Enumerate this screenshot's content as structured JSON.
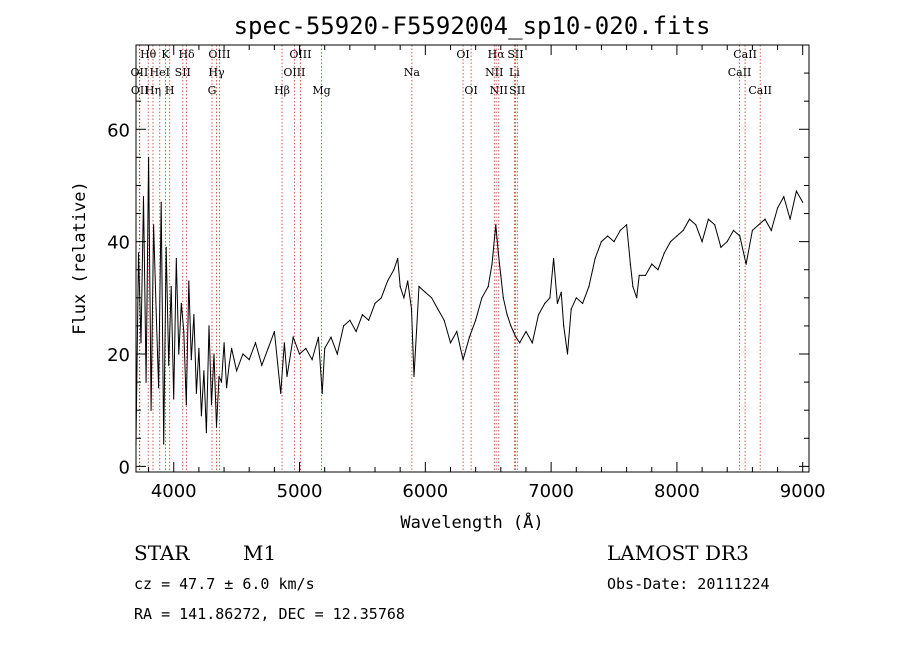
{
  "chart_data": {
    "type": "line",
    "title": "spec-55920-F5592004_sp10-020.fits",
    "xlabel": "Wavelength (Å)",
    "ylabel": "Flux (relative)",
    "xlim": [
      3700,
      9050
    ],
    "ylim": [
      -1,
      75
    ],
    "x_ticks": [
      4000,
      5000,
      6000,
      7000,
      8000,
      9000
    ],
    "y_ticks": [
      0,
      20,
      40,
      60
    ],
    "series": [
      {
        "name": "flux",
        "x": [
          3700,
          3720,
          3740,
          3760,
          3780,
          3800,
          3820,
          3840,
          3860,
          3880,
          3900,
          3920,
          3940,
          3960,
          3980,
          4000,
          4020,
          4040,
          4060,
          4080,
          4100,
          4120,
          4140,
          4160,
          4180,
          4200,
          4220,
          4240,
          4260,
          4280,
          4300,
          4320,
          4340,
          4360,
          4380,
          4400,
          4420,
          4440,
          4460,
          4480,
          4500,
          4550,
          4600,
          4650,
          4700,
          4750,
          4800,
          4850,
          4880,
          4900,
          4950,
          5000,
          5050,
          5100,
          5150,
          5180,
          5200,
          5250,
          5300,
          5350,
          5400,
          5450,
          5500,
          5550,
          5600,
          5650,
          5700,
          5750,
          5780,
          5800,
          5830,
          5860,
          5890,
          5910,
          5950,
          6000,
          6050,
          6100,
          6150,
          6200,
          6250,
          6280,
          6300,
          6350,
          6400,
          6450,
          6500,
          6530,
          6560,
          6580,
          6600,
          6620,
          6650,
          6680,
          6700,
          6720,
          6750,
          6800,
          6850,
          6900,
          6950,
          6990,
          7020,
          7050,
          7080,
          7100,
          7130,
          7160,
          7200,
          7250,
          7300,
          7350,
          7400,
          7450,
          7500,
          7550,
          7600,
          7630,
          7650,
          7680,
          7700,
          7750,
          7800,
          7850,
          7900,
          7950,
          8000,
          8050,
          8100,
          8150,
          8200,
          8250,
          8300,
          8350,
          8400,
          8450,
          8500,
          8550,
          8600,
          8650,
          8700,
          8750,
          8800,
          8850,
          8900,
          8950,
          9000
        ],
        "values": [
          4,
          38,
          22,
          48,
          15,
          55,
          10,
          43,
          28,
          14,
          47,
          4,
          39,
          18,
          32,
          12,
          37,
          20,
          29,
          24,
          11,
          33,
          19,
          27,
          13,
          21,
          9,
          17,
          6,
          25,
          11,
          20,
          7,
          16,
          15,
          22,
          14,
          18,
          21,
          19,
          17,
          20,
          19,
          22,
          18,
          21,
          24,
          13,
          22,
          16,
          23,
          20,
          21,
          19,
          23,
          13,
          21,
          23,
          20,
          25,
          26,
          24,
          27,
          26,
          29,
          30,
          33,
          35,
          37,
          32,
          30,
          33,
          28,
          16,
          32,
          31,
          30,
          28,
          26,
          22,
          24,
          21,
          19,
          23,
          26,
          30,
          32,
          36,
          43,
          38,
          34,
          30,
          27,
          25,
          24,
          23,
          22,
          24,
          22,
          27,
          29,
          30,
          37,
          29,
          31,
          25,
          20,
          28,
          30,
          29,
          32,
          37,
          40,
          41,
          40,
          42,
          43,
          36,
          32,
          30,
          34,
          34,
          36,
          35,
          38,
          40,
          41,
          42,
          44,
          43,
          40,
          44,
          43,
          39,
          40,
          42,
          41,
          36,
          42,
          43,
          44,
          42,
          46,
          48,
          44,
          49,
          47
        ]
      }
    ],
    "lines": [
      {
        "name": "Hθ",
        "x": 3797,
        "row": 1
      },
      {
        "name": "OII",
        "x": 3727,
        "row": 2
      },
      {
        "name": "OII",
        "x": 3730,
        "row": 3
      },
      {
        "name": "K",
        "x": 3934,
        "row": 1
      },
      {
        "name": "HeI",
        "x": 3889,
        "row": 2
      },
      {
        "name": "Hη",
        "x": 3835,
        "row": 3
      },
      {
        "name": "Hδ",
        "x": 4102,
        "row": 1
      },
      {
        "name": "SII",
        "x": 4072,
        "row": 2
      },
      {
        "name": "H",
        "x": 3968,
        "row": 3
      },
      {
        "name": "OIII",
        "x": 4363,
        "row": 1
      },
      {
        "name": "Hγ",
        "x": 4340,
        "row": 2
      },
      {
        "name": "G",
        "x": 4304,
        "row": 3
      },
      {
        "name": "Hβ",
        "x": 4861,
        "row": 3
      },
      {
        "name": "OIII",
        "x": 5007,
        "row": 1
      },
      {
        "name": "OIII",
        "x": 4959,
        "row": 2
      },
      {
        "name": "Mg",
        "x": 5175,
        "row": 3
      },
      {
        "name": "Na",
        "x": 5893,
        "row": 2
      },
      {
        "name": "OI",
        "x": 6300,
        "row": 1
      },
      {
        "name": "OI",
        "x": 6364,
        "row": 3
      },
      {
        "name": "Hα",
        "x": 6563,
        "row": 1
      },
      {
        "name": "NII",
        "x": 6548,
        "row": 2
      },
      {
        "name": "NII",
        "x": 6584,
        "row": 3
      },
      {
        "name": "SII",
        "x": 6717,
        "row": 1
      },
      {
        "name": "Li",
        "x": 6708,
        "row": 2
      },
      {
        "name": "SII",
        "x": 6731,
        "row": 3
      },
      {
        "name": "CaII",
        "x": 8542,
        "row": 1
      },
      {
        "name": "CaII",
        "x": 8498,
        "row": 2
      },
      {
        "name": "CaII",
        "x": 8662,
        "row": 3
      }
    ]
  },
  "footer": {
    "object_class": "STAR",
    "subclass": "M1",
    "survey": "LAMOST DR3",
    "cz": "cz = 47.7 ± 6.0 km/s",
    "obs_date": "Obs-Date: 20111224",
    "coords": "RA = 141.86272, DEC =  12.35768"
  }
}
